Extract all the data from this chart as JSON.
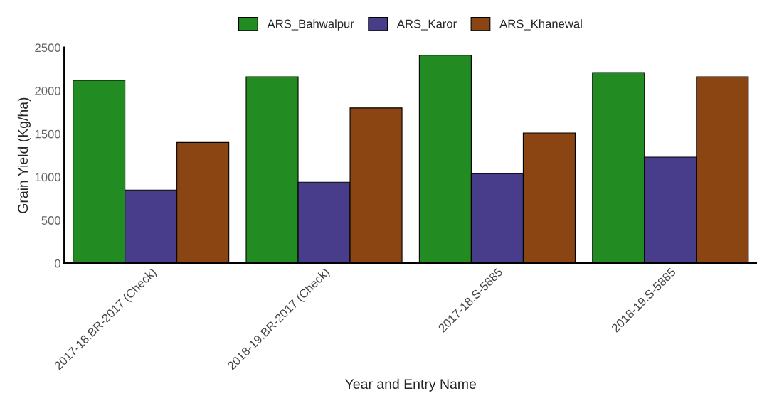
{
  "chart_data": {
    "type": "bar",
    "xlabel": "Year and Entry Name",
    "ylabel": "Grain Yield (Kg/ha)",
    "categories": [
      "2017-18.BR-2017 (Check)",
      "2018-19.BR-2017 (Check)",
      "2017-18.S-5885",
      "2018-19.S-5885"
    ],
    "series": [
      {
        "name": "ARS_Bahwalpur",
        "color": "#228b22",
        "values": [
          2120,
          2160,
          2410,
          2210
        ]
      },
      {
        "name": "ARS_Karor",
        "color": "#483d8b",
        "values": [
          850,
          940,
          1040,
          1230
        ]
      },
      {
        "name": "ARS_Khanewal",
        "color": "#8b4513",
        "values": [
          1400,
          1800,
          1510,
          2160
        ]
      }
    ],
    "ylim": [
      0,
      2500
    ],
    "yticks": [
      0,
      500,
      1000,
      1500,
      2000,
      2500
    ],
    "grid": false,
    "legend": "top"
  }
}
